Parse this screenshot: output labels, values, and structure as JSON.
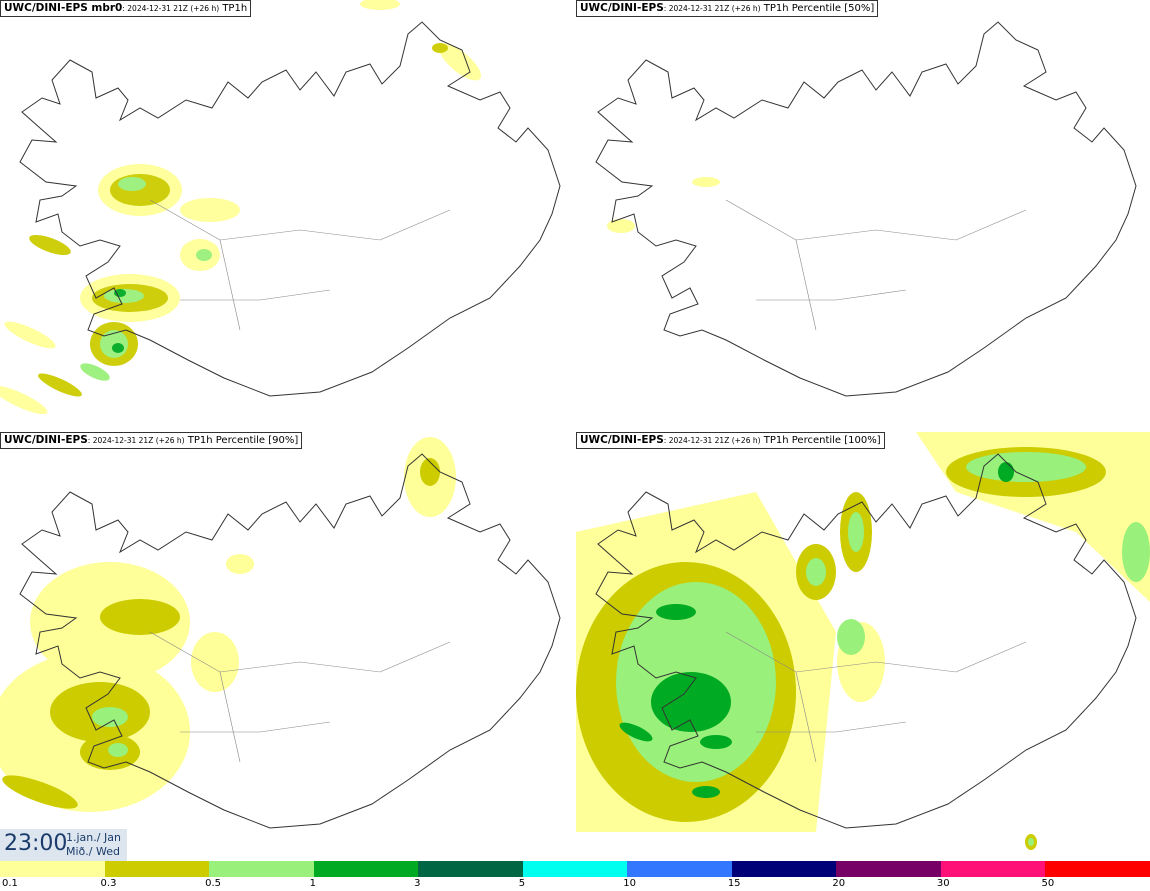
{
  "panels": [
    {
      "model": "UWC/DINI-EPS mbr0",
      "run": "2024-12-31 21Z (+26 h)",
      "product": "TP1h"
    },
    {
      "model": "UWC/DINI-EPS",
      "run": "2024-12-31 21Z (+26 h)",
      "product": "TP1h Percentile [50%]"
    },
    {
      "model": "UWC/DINI-EPS",
      "run": "2024-12-31 21Z (+26 h)",
      "product": "TP1h Percentile [90%]"
    },
    {
      "model": "UWC/DINI-EPS",
      "run": "2024-12-31 21Z (+26 h)",
      "product": "TP1h Percentile [100%]"
    }
  ],
  "time": {
    "hour": "23:00",
    "date_line1": "1.jan./ Jan",
    "date_line2": "Mið./ Wed"
  },
  "legend": {
    "labels": [
      "0.1",
      "0.3",
      "0.5",
      "1",
      "3",
      "5",
      "10",
      "15",
      "20",
      "30",
      "50"
    ],
    "colors": [
      "#ffff99",
      "#cccc00",
      "#99f07a",
      "#00aa22",
      "#006644",
      "#00ffee",
      "#3377ff",
      "#000077",
      "#770066",
      "#ff1177",
      "#ff0000"
    ]
  },
  "colors": {
    "light_yellow": "#ffff99",
    "olive": "#cccc00",
    "light_green": "#99f07a",
    "green": "#00aa22",
    "coast": "#333333"
  }
}
